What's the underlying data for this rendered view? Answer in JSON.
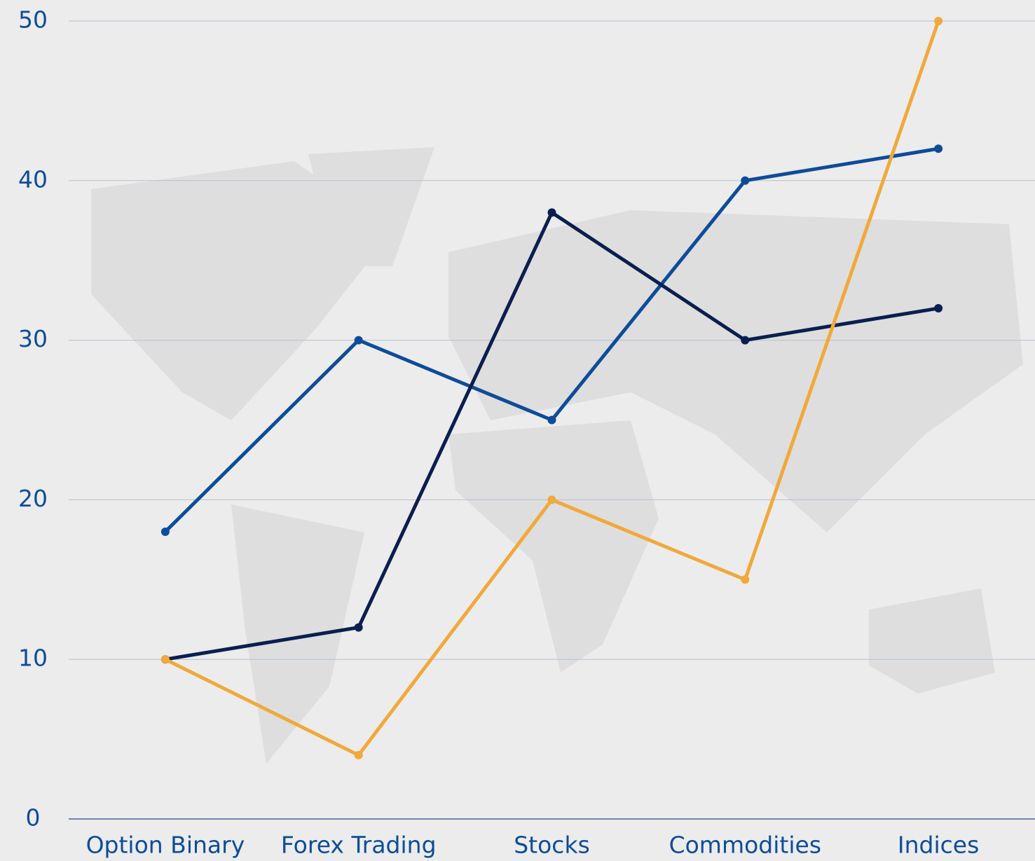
{
  "chart_data": {
    "type": "line",
    "categories": [
      "Option Binary",
      "Forex Trading",
      "Stocks",
      "Commodities",
      "Indices"
    ],
    "series": [
      {
        "color": "#0d4c9a",
        "values": [
          18,
          30,
          25,
          40,
          42
        ]
      },
      {
        "color": "#0a1f4f",
        "values": [
          10,
          12,
          38,
          30,
          32
        ]
      },
      {
        "color": "#f0a93a",
        "values": [
          10,
          4,
          20,
          15,
          50
        ]
      }
    ],
    "ylim": [
      0,
      50
    ],
    "yticks": [
      0,
      10,
      20,
      30,
      40,
      50
    ],
    "grid": true
  }
}
